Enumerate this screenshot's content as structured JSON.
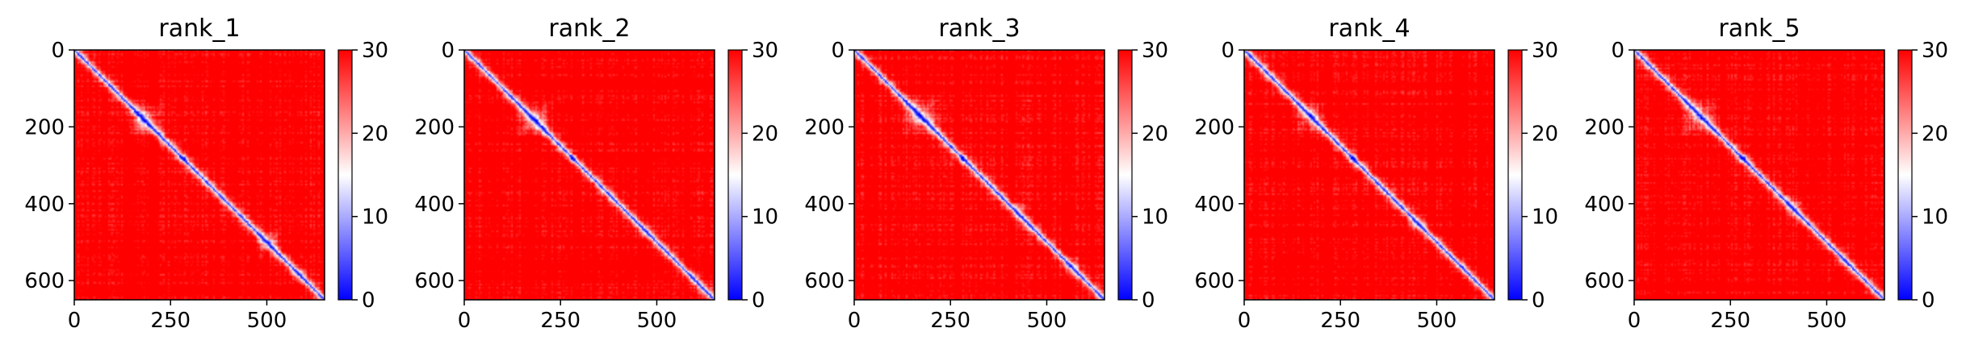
{
  "figure": {
    "background": "#ffffff",
    "colormap": "bwr",
    "colormap_colors": [
      "#0000ff",
      "#ffffff",
      "#ff0000"
    ]
  },
  "chart_data": [
    {
      "type": "heatmap",
      "title": "rank_1",
      "xlabel": "",
      "ylabel": "",
      "matrix_size": 650,
      "xlim": [
        0,
        650
      ],
      "ylim": [
        650,
        0
      ],
      "xticks": [
        0,
        250,
        500
      ],
      "yticks": [
        0,
        200,
        400,
        600
      ],
      "colorbar": {
        "range": [
          0,
          30
        ],
        "ticks": [
          0,
          10,
          20,
          30
        ]
      },
      "blue_blocks": [
        {
          "center": 180,
          "radius": 55,
          "strength": 0.6
        },
        {
          "center": 280,
          "radius": 12,
          "strength": 0.9
        },
        {
          "center": 500,
          "radius": 40,
          "strength": 0.55
        },
        {
          "center": 580,
          "radius": 25,
          "strength": 0.35
        }
      ]
    },
    {
      "type": "heatmap",
      "title": "rank_2",
      "xlabel": "",
      "ylabel": "",
      "matrix_size": 650,
      "xlim": [
        0,
        650
      ],
      "ylim": [
        650,
        0
      ],
      "xticks": [
        0,
        250,
        500
      ],
      "yticks": [
        0,
        200,
        400,
        600
      ],
      "colorbar": {
        "range": [
          0,
          30
        ],
        "ticks": [
          0,
          10,
          20,
          30
        ]
      },
      "blue_blocks": [
        {
          "center": 180,
          "radius": 55,
          "strength": 0.6
        },
        {
          "center": 280,
          "radius": 12,
          "strength": 0.9
        },
        {
          "center": 470,
          "radius": 25,
          "strength": 0.3
        },
        {
          "center": 590,
          "radius": 20,
          "strength": 0.3
        }
      ]
    },
    {
      "type": "heatmap",
      "title": "rank_3",
      "xlabel": "",
      "ylabel": "",
      "matrix_size": 650,
      "xlim": [
        0,
        650
      ],
      "ylim": [
        650,
        0
      ],
      "xticks": [
        0,
        250,
        500
      ],
      "yticks": [
        0,
        200,
        400,
        600
      ],
      "colorbar": {
        "range": [
          0,
          30
        ],
        "ticks": [
          0,
          10,
          20,
          30
        ]
      },
      "blue_blocks": [
        {
          "center": 170,
          "radius": 60,
          "strength": 0.55
        },
        {
          "center": 280,
          "radius": 12,
          "strength": 0.9
        },
        {
          "center": 420,
          "radius": 30,
          "strength": 0.35
        },
        {
          "center": 560,
          "radius": 30,
          "strength": 0.35
        }
      ]
    },
    {
      "type": "heatmap",
      "title": "rank_4",
      "xlabel": "",
      "ylabel": "",
      "matrix_size": 650,
      "xlim": [
        0,
        650
      ],
      "ylim": [
        650,
        0
      ],
      "xticks": [
        0,
        250,
        500
      ],
      "yticks": [
        0,
        200,
        400,
        600
      ],
      "colorbar": {
        "range": [
          0,
          30
        ],
        "ticks": [
          0,
          10,
          20,
          30
        ]
      },
      "blue_blocks": [
        {
          "center": 170,
          "radius": 55,
          "strength": 0.5
        },
        {
          "center": 280,
          "radius": 12,
          "strength": 0.9
        },
        {
          "center": 450,
          "radius": 30,
          "strength": 0.3
        },
        {
          "center": 560,
          "radius": 25,
          "strength": 0.3
        }
      ]
    },
    {
      "type": "heatmap",
      "title": "rank_5",
      "xlabel": "",
      "ylabel": "",
      "matrix_size": 650,
      "xlim": [
        0,
        650
      ],
      "ylim": [
        650,
        0
      ],
      "xticks": [
        0,
        250,
        500
      ],
      "yticks": [
        0,
        200,
        400,
        600
      ],
      "colorbar": {
        "range": [
          0,
          30
        ],
        "ticks": [
          0,
          10,
          20,
          30
        ]
      },
      "blue_blocks": [
        {
          "center": 170,
          "radius": 55,
          "strength": 0.5
        },
        {
          "center": 280,
          "radius": 12,
          "strength": 0.9
        },
        {
          "center": 410,
          "radius": 30,
          "strength": 0.45
        },
        {
          "center": 540,
          "radius": 25,
          "strength": 0.3
        }
      ]
    }
  ]
}
